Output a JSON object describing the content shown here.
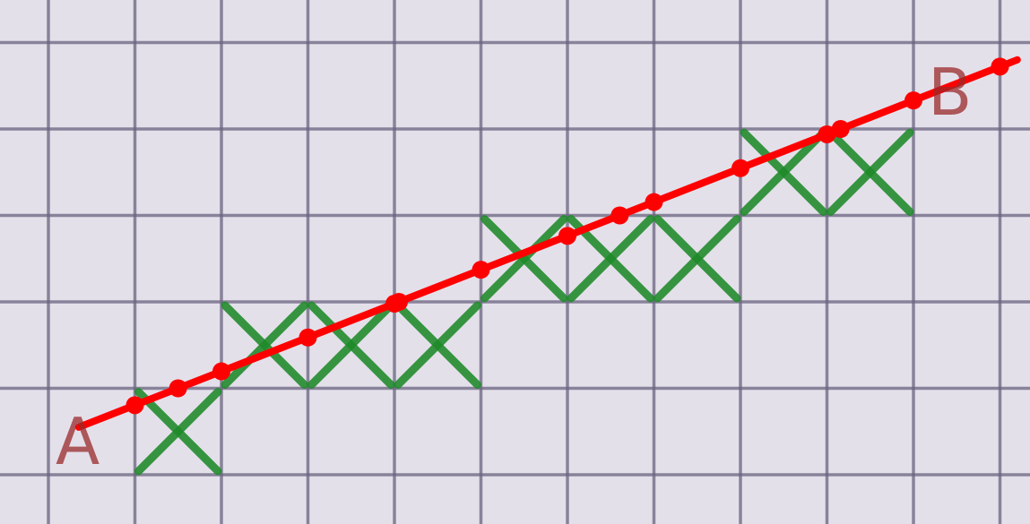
{
  "diagram": {
    "endpoint_labels": {
      "start": "A",
      "end": "B"
    },
    "grid": {
      "columns": 12,
      "rows": 6
    },
    "colors": {
      "paper": "#e4e0ea",
      "grid": "#6a6480",
      "line": "#ff0000",
      "cross": "#1f8a2a",
      "label": "#9a2a2a"
    },
    "segment": {
      "from": [
        0.35,
        0.55
      ],
      "to": [
        11.2,
        4.8
      ]
    },
    "marked_cells": [
      [
        1,
        0
      ],
      [
        2,
        1
      ],
      [
        3,
        1
      ],
      [
        4,
        1
      ],
      [
        5,
        2
      ],
      [
        6,
        2
      ],
      [
        7,
        2
      ],
      [
        8,
        3
      ],
      [
        9,
        3
      ]
    ]
  }
}
